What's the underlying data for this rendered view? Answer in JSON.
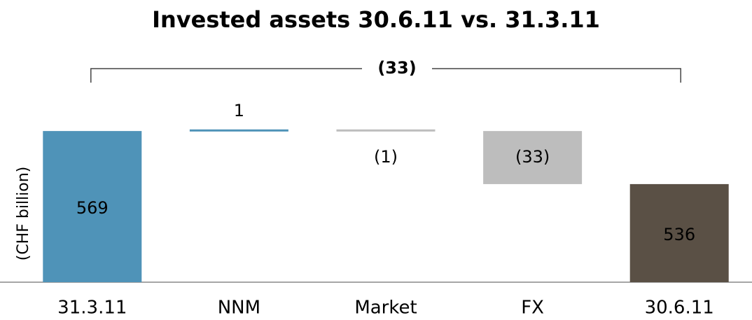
{
  "chart_data": {
    "type": "waterfall",
    "title": "Invested assets 30.6.11 vs. 31.3.11",
    "y_label": "(CHF billion)",
    "bracket_label": "(33)",
    "categories": [
      "31.3.11",
      "NNM",
      "Market",
      "FX",
      "30.6.11"
    ],
    "values": [
      569,
      1,
      -1,
      -33,
      536
    ],
    "value_labels": [
      "569",
      "1",
      "(1)",
      "(33)",
      "536"
    ],
    "measure": [
      "absolute",
      "relative",
      "relative",
      "relative",
      "absolute"
    ],
    "colors": [
      "#4f93b8",
      "#4f93b8",
      "#bdbdbd",
      "#bdbdbd",
      "#5a5045"
    ],
    "ylim": [
      475,
      620
    ]
  }
}
